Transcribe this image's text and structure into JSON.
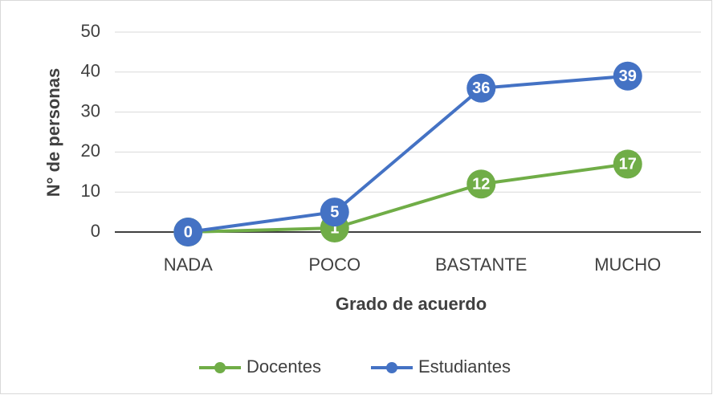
{
  "chart_data": {
    "type": "line",
    "x_label": "Grado de acuerdo",
    "y_label": "N° de personas",
    "categories": [
      "NADA",
      "POCO",
      "BASTANTE",
      "MUCHO"
    ],
    "series": [
      {
        "name": "Docentes",
        "color": "#70ad47",
        "values": [
          0,
          1,
          12,
          17
        ]
      },
      {
        "name": "Estudiantes",
        "color": "#4472c4",
        "values": [
          0,
          5,
          36,
          39
        ]
      }
    ],
    "ylim": [
      0,
      50
    ],
    "yticks": [
      0,
      10,
      20,
      30,
      40,
      50
    ],
    "grid": true,
    "legend": "bottom"
  }
}
